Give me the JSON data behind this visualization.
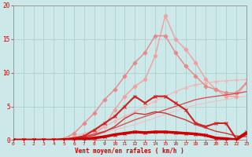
{
  "bg_color": "#cce8e8",
  "grid_color": "#aacccc",
  "xlabel": "Vent moyen/en rafales ( km/h )",
  "xlabel_color": "#cc0000",
  "tick_color": "#cc0000",
  "xlim": [
    0,
    23
  ],
  "ylim": [
    0,
    20
  ],
  "yticks": [
    0,
    5,
    10,
    15,
    20
  ],
  "xticks": [
    0,
    1,
    2,
    3,
    4,
    5,
    6,
    7,
    8,
    9,
    10,
    11,
    12,
    13,
    14,
    15,
    16,
    17,
    18,
    19,
    20,
    21,
    22,
    23
  ],
  "lines": [
    {
      "x": [
        0,
        1,
        2,
        3,
        4,
        5,
        6,
        7,
        8,
        9,
        10,
        11,
        12,
        13,
        14,
        15,
        16,
        17,
        18,
        19,
        20,
        21,
        22,
        23
      ],
      "y": [
        0,
        0,
        0,
        0,
        0,
        0,
        0.2,
        0.5,
        1.0,
        2.0,
        4.5,
        6.5,
        8.0,
        9.0,
        12.5,
        18.5,
        15.0,
        13.5,
        11.5,
        9.0,
        7.5,
        6.5,
        6.5,
        8.5
      ],
      "color": "#f0a0a0",
      "lw": 1.0,
      "marker": "D",
      "ms": 2.5,
      "zorder": 2
    },
    {
      "x": [
        0,
        1,
        2,
        3,
        4,
        5,
        6,
        7,
        8,
        9,
        10,
        11,
        12,
        13,
        14,
        15,
        16,
        17,
        18,
        19,
        20,
        21,
        22,
        23
      ],
      "y": [
        0,
        0,
        0,
        0,
        0,
        0.2,
        1.0,
        2.5,
        4.0,
        6.0,
        7.5,
        9.5,
        11.5,
        13.0,
        15.5,
        15.5,
        13.0,
        11.0,
        9.5,
        8.0,
        7.5,
        7.0,
        7.0,
        8.5
      ],
      "color": "#e88888",
      "lw": 1.0,
      "marker": "D",
      "ms": 2.5,
      "zorder": 3
    },
    {
      "x": [
        0,
        1,
        2,
        3,
        4,
        5,
        6,
        7,
        8,
        9,
        10,
        11,
        12,
        13,
        14,
        15,
        16,
        17,
        18,
        19,
        20,
        21,
        22,
        23
      ],
      "y": [
        0,
        0,
        0,
        0,
        0.1,
        0.3,
        0.6,
        1.0,
        1.5,
        2.0,
        2.8,
        3.5,
        4.2,
        5.0,
        5.8,
        6.5,
        7.2,
        7.8,
        8.2,
        8.5,
        8.7,
        8.8,
        8.9,
        9.0
      ],
      "color": "#f0b8b8",
      "lw": 0.9,
      "marker": "D",
      "ms": 2.0,
      "zorder": 2
    },
    {
      "x": [
        0,
        1,
        2,
        3,
        4,
        5,
        6,
        7,
        8,
        9,
        10,
        11,
        12,
        13,
        14,
        15,
        16,
        17,
        18,
        19,
        20,
        21,
        22,
        23
      ],
      "y": [
        0,
        0,
        0,
        0,
        0.05,
        0.15,
        0.3,
        0.5,
        0.8,
        1.1,
        1.5,
        1.9,
        2.3,
        2.8,
        3.3,
        3.8,
        4.3,
        4.8,
        5.2,
        5.5,
        5.8,
        6.0,
        6.3,
        6.5
      ],
      "color": "#f0c0c0",
      "lw": 0.8,
      "marker": null,
      "ms": 0,
      "zorder": 1
    },
    {
      "x": [
        0,
        1,
        2,
        3,
        4,
        5,
        6,
        7,
        8,
        9,
        10,
        11,
        12,
        13,
        14,
        15,
        16,
        17,
        18,
        19,
        20,
        21,
        22,
        23
      ],
      "y": [
        0,
        0,
        0,
        0,
        0,
        0.1,
        0.3,
        0.6,
        1.5,
        2.5,
        3.5,
        5.0,
        6.5,
        5.5,
        6.5,
        6.5,
        5.5,
        4.5,
        2.5,
        2.0,
        2.5,
        2.5,
        0.2,
        1.2
      ],
      "color": "#cc2222",
      "lw": 1.5,
      "marker": "x",
      "ms": 3,
      "zorder": 5
    },
    {
      "x": [
        0,
        1,
        2,
        3,
        4,
        5,
        6,
        7,
        8,
        9,
        10,
        11,
        12,
        13,
        14,
        15,
        16,
        17,
        18,
        19,
        20,
        21,
        22,
        23
      ],
      "y": [
        0,
        0,
        0,
        0,
        0,
        0.05,
        0.1,
        0.15,
        0.3,
        0.5,
        0.8,
        1.0,
        1.2,
        1.1,
        1.2,
        1.2,
        1.1,
        1.0,
        0.9,
        0.7,
        0.3,
        0.2,
        0.05,
        1.0
      ],
      "color": "#cc0000",
      "lw": 2.5,
      "marker": "x",
      "ms": 3,
      "zorder": 6
    },
    {
      "x": [
        0,
        1,
        2,
        3,
        4,
        5,
        6,
        7,
        8,
        9,
        10,
        11,
        12,
        13,
        14,
        15,
        16,
        17,
        18,
        19,
        20,
        21,
        22,
        23
      ],
      "y": [
        0,
        0,
        0,
        0,
        0.05,
        0.15,
        0.3,
        0.5,
        0.9,
        1.3,
        1.8,
        2.4,
        3.0,
        3.5,
        4.0,
        4.5,
        5.0,
        5.5,
        6.0,
        6.3,
        6.5,
        6.7,
        6.9,
        7.2
      ],
      "color": "#dd4444",
      "lw": 0.9,
      "marker": null,
      "ms": 0,
      "zorder": 4
    },
    {
      "x": [
        0,
        1,
        2,
        3,
        4,
        5,
        6,
        7,
        8,
        9,
        10,
        11,
        12,
        13,
        14,
        15,
        16,
        17,
        18,
        19,
        20,
        21,
        22,
        23
      ],
      "y": [
        0,
        0,
        0,
        0,
        0.05,
        0.1,
        0.2,
        0.4,
        0.7,
        1.2,
        2.0,
        3.2,
        4.0,
        3.8,
        4.2,
        4.0,
        3.5,
        3.0,
        2.3,
        1.8,
        1.3,
        1.0,
        0.6,
        0.5
      ],
      "color": "#cc3333",
      "lw": 1.0,
      "marker": null,
      "ms": 0,
      "zorder": 4
    }
  ]
}
